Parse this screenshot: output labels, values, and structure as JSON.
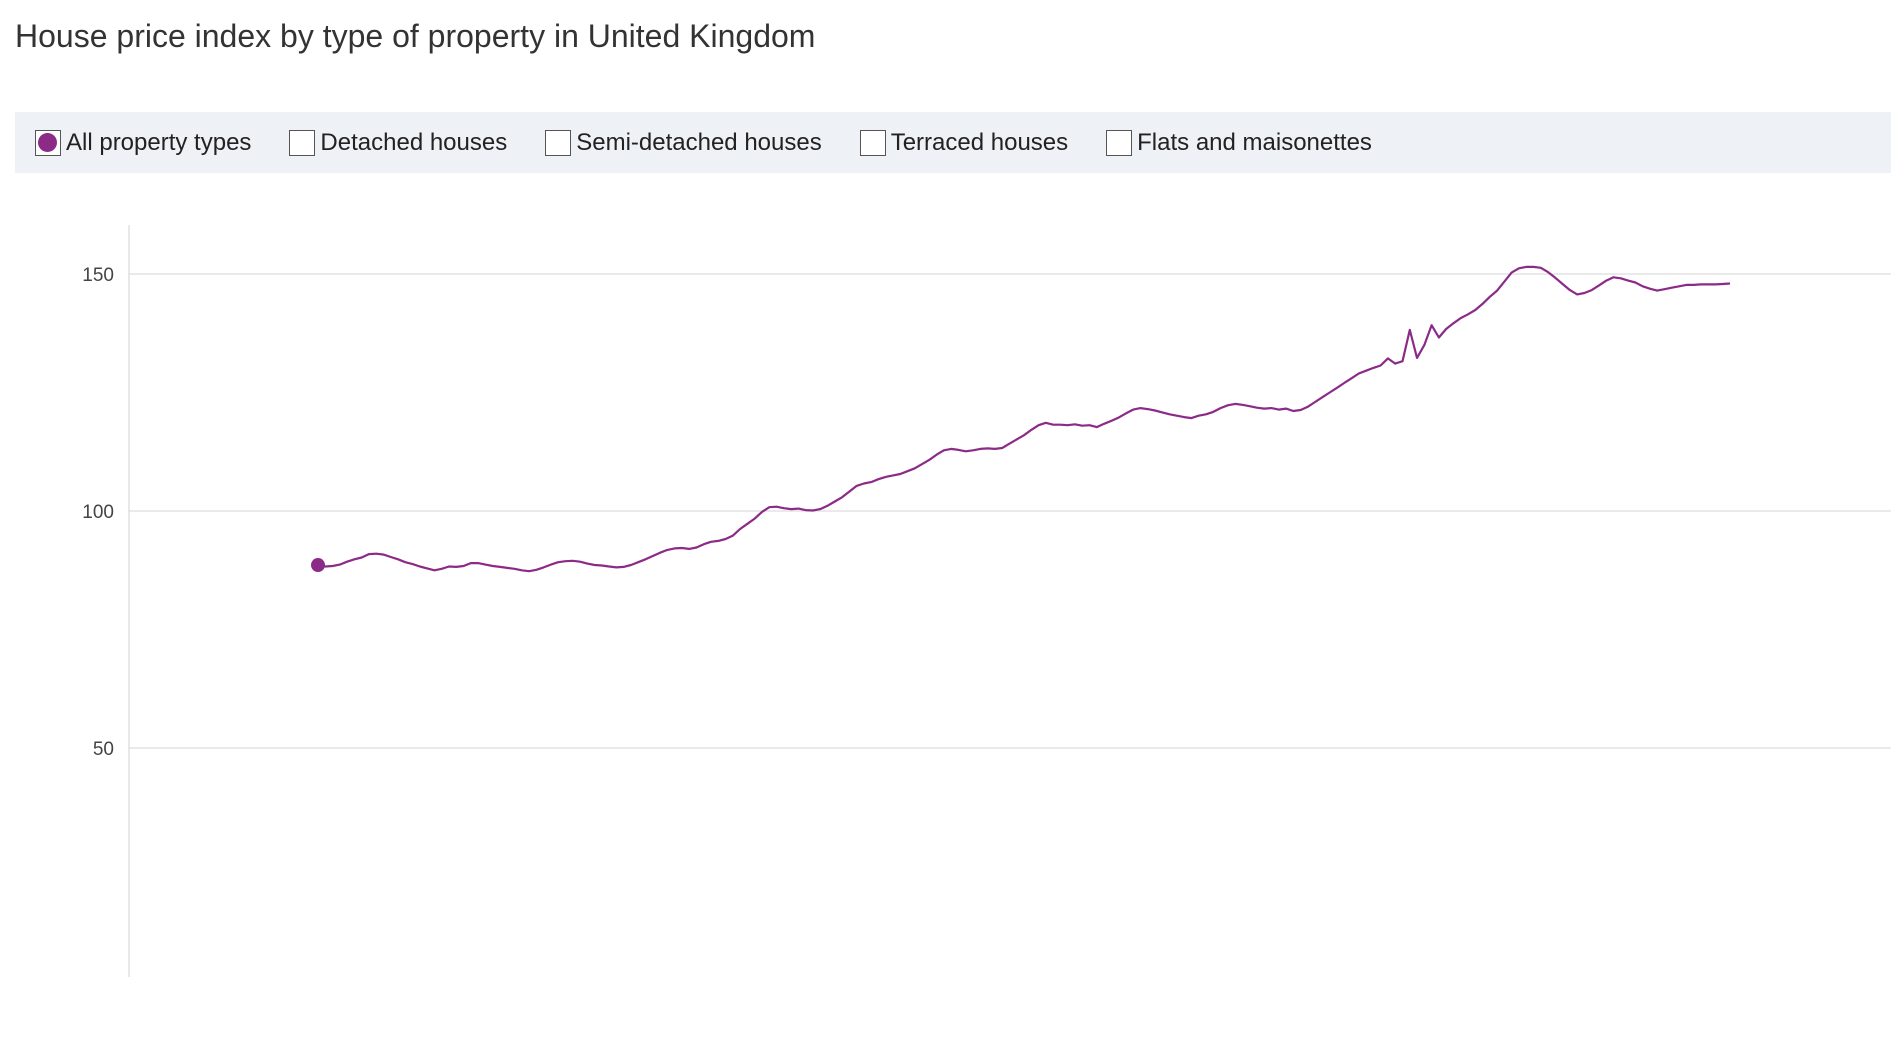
{
  "title": "House price index by type of property in United Kingdom",
  "legend": {
    "items": [
      {
        "label": "All property types",
        "checked": true
      },
      {
        "label": "Detached houses",
        "checked": false
      },
      {
        "label": "Semi-detached houses",
        "checked": false
      },
      {
        "label": "Terraced houses",
        "checked": false
      },
      {
        "label": "Flats and maisonettes",
        "checked": false
      }
    ]
  },
  "colors": {
    "series": "#8b2a87",
    "grid": "#dddddd",
    "legend_bg": "#eef1f5"
  },
  "chart_data": {
    "type": "line",
    "title": "House price index by type of property in United Kingdom",
    "xlabel": "",
    "ylabel": "",
    "ylim": [
      0,
      160
    ],
    "yticks": [
      50,
      100,
      150
    ],
    "grid": true,
    "legend_placement": "top",
    "x": [
      1,
      2,
      3,
      4,
      5,
      6,
      7,
      8,
      9,
      10,
      11,
      12,
      13,
      14,
      15,
      16,
      17,
      18,
      19,
      20,
      21,
      22,
      23,
      24,
      25,
      26,
      27,
      28,
      29,
      30,
      31,
      32,
      33,
      34,
      35,
      36,
      37,
      38,
      39,
      40,
      41,
      42,
      43,
      44,
      45,
      46,
      47,
      48,
      49,
      50,
      51,
      52,
      53,
      54,
      55,
      56,
      57,
      58,
      59,
      60,
      61,
      62,
      63,
      64,
      65,
      66,
      67,
      68,
      69,
      70,
      71,
      72,
      73,
      74,
      75,
      76,
      77,
      78,
      79,
      80,
      81,
      82,
      83,
      84,
      85,
      86,
      87,
      88,
      89,
      90,
      91,
      92,
      93,
      94,
      95,
      96,
      97,
      98,
      99,
      100,
      101,
      102,
      103,
      104,
      105,
      106,
      107,
      108,
      109,
      110,
      111,
      112,
      113,
      114,
      115,
      116,
      117,
      118,
      119,
      120,
      121,
      122,
      123,
      124,
      125,
      126,
      127,
      128,
      129,
      130,
      131,
      132,
      133,
      134,
      135,
      136,
      137,
      138,
      139,
      140,
      141,
      142,
      143,
      144,
      145,
      146,
      147,
      148,
      149,
      150,
      151,
      152,
      153,
      154,
      155,
      156,
      157,
      158,
      159,
      160,
      161,
      162,
      163,
      164,
      165,
      166,
      167,
      168,
      169,
      170,
      171,
      172,
      173,
      174,
      175,
      176,
      177,
      178,
      179,
      180,
      181,
      182,
      183,
      184,
      185,
      186,
      187,
      188,
      189,
      190,
      191,
      192,
      193,
      194,
      195
    ],
    "series": [
      {
        "values": [
          88.6,
          88.3,
          88.4,
          88.7,
          89.3,
          89.8,
          90.2,
          90.9,
          91,
          90.8,
          90.3,
          89.8,
          89.2,
          88.8,
          88.3,
          87.9,
          87.5,
          87.8,
          88.3,
          88.2,
          88.4,
          89,
          89,
          88.7,
          88.4,
          88.2,
          88,
          87.8,
          87.5,
          87.3,
          87.6,
          88.1,
          88.7,
          89.2,
          89.4,
          89.5,
          89.3,
          88.9,
          88.6,
          88.5,
          88.3,
          88.1,
          88.2,
          88.6,
          89.2,
          89.8,
          90.5,
          91.2,
          91.8,
          92.1,
          92.2,
          92,
          92.3,
          93,
          93.5,
          93.7,
          94.1,
          94.8,
          96.2,
          97.3,
          98.4,
          99.8,
          100.8,
          100.9,
          100.6,
          100.4,
          100.5,
          100.2,
          100.1,
          100.4,
          101.1,
          102,
          102.9,
          104.1,
          105.3,
          105.8,
          106.1,
          106.7,
          107.2,
          107.5,
          107.8,
          108.4,
          109,
          109.9,
          110.8,
          111.9,
          112.8,
          113.1,
          112.9,
          112.6,
          112.8,
          113.1,
          113.2,
          113.1,
          113.3,
          114.2,
          115.1,
          116,
          117.1,
          118.1,
          118.6,
          118.2,
          118.2,
          118.1,
          118.3,
          118,
          118.1,
          117.7,
          118.4,
          119,
          119.7,
          120.6,
          121.4,
          121.7,
          121.5,
          121.2,
          120.8,
          120.4,
          120.1,
          119.8,
          119.6,
          120.1,
          120.4,
          120.9,
          121.7,
          122.3,
          122.6,
          122.4,
          122.1,
          121.8,
          121.6,
          121.7,
          121.4,
          121.6,
          121.1,
          121.3,
          122,
          123,
          124,
          125,
          126,
          127,
          128,
          129,
          129.6,
          130.2,
          130.7,
          132.2,
          131.1,
          131.6,
          138.2,
          132.3,
          135,
          139.2,
          136.6,
          138.4,
          139.6,
          140.7,
          141.5,
          142.4,
          143.7,
          145.2,
          146.5,
          148.4,
          150.3,
          151.2,
          151.5,
          151.5,
          151.3,
          150.4,
          149.2,
          147.9,
          146.6,
          145.7,
          146,
          146.6,
          147.6,
          148.6,
          149.3,
          149.1,
          148.6,
          148.2,
          147.4,
          146.9,
          146.5,
          146.8,
          147.1,
          147.4,
          147.7,
          147.7,
          147.8,
          147.8,
          147.8,
          147.9,
          148
        ]
      }
    ]
  }
}
